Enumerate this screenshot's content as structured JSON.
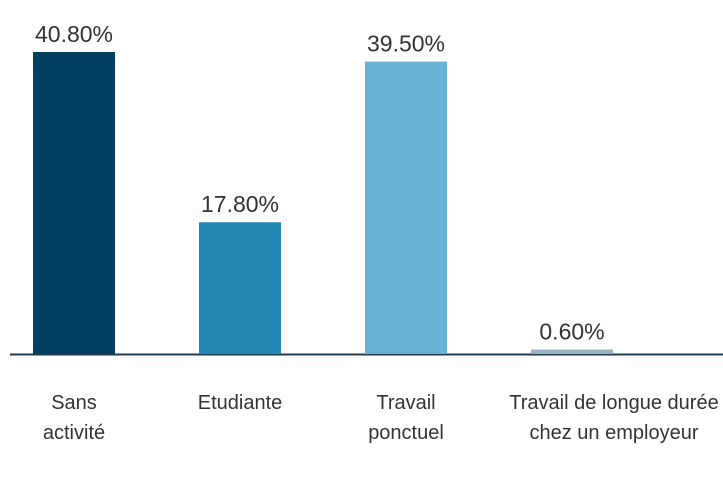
{
  "chart_data": {
    "type": "bar",
    "categories": [
      "Sans activité",
      "Etudiante",
      "Travail ponctuel",
      "Travail de longue durée chez un employeur"
    ],
    "values": [
      40.8,
      17.8,
      39.5,
      0.6
    ],
    "value_labels": [
      "40.80%",
      "17.80%",
      "39.50%",
      "0.60%"
    ],
    "colors": [
      "#033f5f",
      "#2387b3",
      "#68b2d3",
      "#9ab2bf"
    ]
  }
}
